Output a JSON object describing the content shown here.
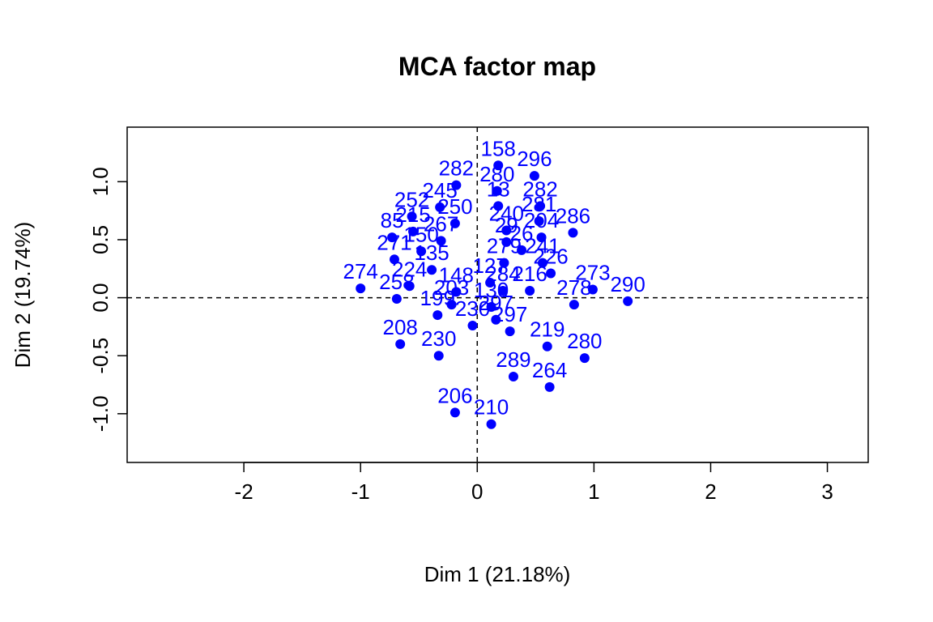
{
  "chart_data": {
    "type": "scatter",
    "title": "MCA factor map",
    "xlabel": "Dim 1 (21.18%)",
    "ylabel": "Dim 2 (19.74%)",
    "xlim": [
      -3.0,
      3.35
    ],
    "ylim": [
      -1.42,
      1.47
    ],
    "x_ticks": [
      -2,
      -1,
      0,
      1,
      2,
      3
    ],
    "x_tick_labels": [
      "-2",
      "-1",
      "0",
      "1",
      "2",
      "3"
    ],
    "y_ticks": [
      -1.0,
      -0.5,
      0.0,
      0.5,
      1.0
    ],
    "y_tick_labels": [
      "-1.0",
      "-0.5",
      "0.0",
      "0.5",
      "1.0"
    ],
    "reference_lines": {
      "x": 0,
      "y": 0,
      "style": "dashed"
    },
    "color": "#0000ff",
    "points": [
      {
        "x": 0.18,
        "y": 1.14,
        "label": "158"
      },
      {
        "x": 0.49,
        "y": 1.05,
        "label": "296"
      },
      {
        "x": -0.18,
        "y": 0.97,
        "label": "282"
      },
      {
        "x": 0.17,
        "y": 0.92,
        "label": "280"
      },
      {
        "x": -0.32,
        "y": 0.78,
        "label": "245"
      },
      {
        "x": 0.18,
        "y": 0.79,
        "label": "13"
      },
      {
        "x": 0.54,
        "y": 0.79,
        "label": "282"
      },
      {
        "x": -0.56,
        "y": 0.7,
        "label": "252"
      },
      {
        "x": -0.19,
        "y": 0.64,
        "label": "250"
      },
      {
        "x": 0.53,
        "y": 0.66,
        "label": "281"
      },
      {
        "x": 0.82,
        "y": 0.56,
        "label": "286"
      },
      {
        "x": -0.55,
        "y": 0.57,
        "label": "215"
      },
      {
        "x": 0.25,
        "y": 0.58,
        "label": "240"
      },
      {
        "x": 0.55,
        "y": 0.52,
        "label": "204"
      },
      {
        "x": -0.73,
        "y": 0.52,
        "label": "85"
      },
      {
        "x": -0.48,
        "y": 0.4,
        "label": "150"
      },
      {
        "x": -0.31,
        "y": 0.49,
        "label": "267"
      },
      {
        "x": 0.25,
        "y": 0.48,
        "label": "29"
      },
      {
        "x": 0.38,
        "y": 0.41,
        "label": "26"
      },
      {
        "x": -0.71,
        "y": 0.33,
        "label": "271"
      },
      {
        "x": -0.39,
        "y": 0.24,
        "label": "135"
      },
      {
        "x": 0.23,
        "y": 0.3,
        "label": "279"
      },
      {
        "x": 0.56,
        "y": 0.3,
        "label": "241"
      },
      {
        "x": 0.63,
        "y": 0.21,
        "label": "226"
      },
      {
        "x": 0.99,
        "y": 0.07,
        "label": "273"
      },
      {
        "x": -1.0,
        "y": 0.08,
        "label": "274"
      },
      {
        "x": -0.58,
        "y": 0.1,
        "label": "224"
      },
      {
        "x": 0.11,
        "y": 0.13,
        "label": "127"
      },
      {
        "x": -0.18,
        "y": 0.05,
        "label": "148"
      },
      {
        "x": 0.22,
        "y": 0.06,
        "label": "284"
      },
      {
        "x": 0.45,
        "y": 0.06,
        "label": "216"
      },
      {
        "x": 1.29,
        "y": -0.03,
        "label": "290"
      },
      {
        "x": -0.69,
        "y": -0.01,
        "label": "258"
      },
      {
        "x": -0.22,
        "y": -0.06,
        "label": "203"
      },
      {
        "x": 0.12,
        "y": -0.08,
        "label": "130"
      },
      {
        "x": 0.83,
        "y": -0.06,
        "label": "278"
      },
      {
        "x": -0.34,
        "y": -0.15,
        "label": "199"
      },
      {
        "x": 0.16,
        "y": -0.19,
        "label": "297"
      },
      {
        "x": -0.04,
        "y": -0.24,
        "label": "230"
      },
      {
        "x": -0.66,
        "y": -0.4,
        "label": "208"
      },
      {
        "x": -0.33,
        "y": -0.5,
        "label": "230"
      },
      {
        "x": 0.28,
        "y": -0.29,
        "label": "297"
      },
      {
        "x": 0.6,
        "y": -0.42,
        "label": "219"
      },
      {
        "x": 0.92,
        "y": -0.52,
        "label": "280"
      },
      {
        "x": 0.31,
        "y": -0.68,
        "label": "289"
      },
      {
        "x": 0.62,
        "y": -0.77,
        "label": "264"
      },
      {
        "x": -0.19,
        "y": -0.99,
        "label": "206"
      },
      {
        "x": 0.12,
        "y": -1.09,
        "label": "210"
      }
    ]
  }
}
